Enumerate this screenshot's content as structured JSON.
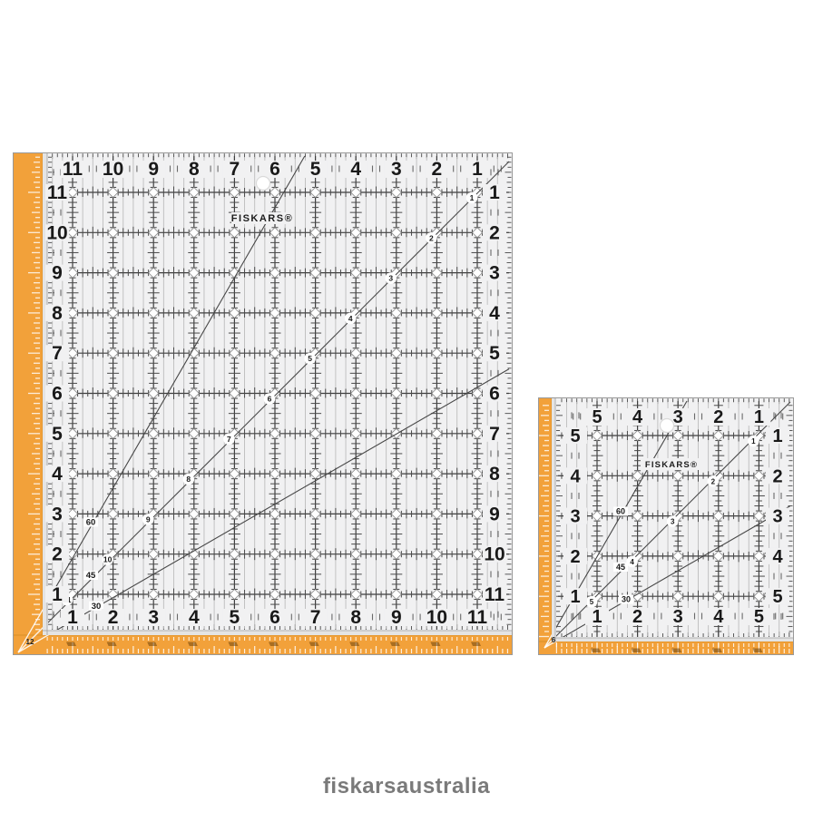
{
  "brand_footer": {
    "text": "fiskarsaustralia",
    "color": "#7a7a7a"
  },
  "colors": {
    "orange": "#F2A13A",
    "orange_edge": "#D88E25",
    "body": "#F1F1F2",
    "edge_band": "#E4E4E4",
    "grid_major": "#3E3E3E",
    "grid_minor": "#BDBDBD",
    "tick": "#4A4A4A",
    "number": "#191919",
    "diagonal": "#474747",
    "white": "#FFFFFF"
  },
  "rulers": [
    {
      "id": "large",
      "logo": "FISKARS®",
      "top_numbers": [
        "11",
        "10",
        "9",
        "8",
        "7",
        "6",
        "5",
        "4",
        "3",
        "2",
        "1"
      ],
      "left_numbers": [
        "11",
        "10",
        "9",
        "8",
        "7",
        "6",
        "5",
        "4",
        "3",
        "2",
        "1"
      ],
      "right_numbers": [
        "1",
        "2",
        "3",
        "4",
        "5",
        "6",
        "7",
        "8",
        "9",
        "10",
        "11"
      ],
      "bottom_numbers": [
        "1",
        "2",
        "3",
        "4",
        "5",
        "6",
        "7",
        "8",
        "9",
        "10",
        "11"
      ],
      "diagonal_numbers": [
        "1",
        "2",
        "3",
        "4",
        "5",
        "6",
        "7",
        "8",
        "9",
        "10",
        "11"
      ],
      "corner_number": "12",
      "angle_labels": [
        "60",
        "45",
        "30"
      ]
    },
    {
      "id": "small",
      "logo": "FISKARS®",
      "top_numbers": [
        "5",
        "4",
        "3",
        "2",
        "1"
      ],
      "left_numbers": [
        "5",
        "4",
        "3",
        "2",
        "1"
      ],
      "right_numbers": [
        "1",
        "2",
        "3",
        "4",
        "5"
      ],
      "bottom_numbers": [
        "1",
        "2",
        "3",
        "4",
        "5"
      ],
      "diagonal_numbers": [
        "1",
        "2",
        "3",
        "4",
        "5"
      ],
      "corner_number": "6",
      "angle_labels": [
        "60",
        "45",
        "30"
      ]
    }
  ]
}
